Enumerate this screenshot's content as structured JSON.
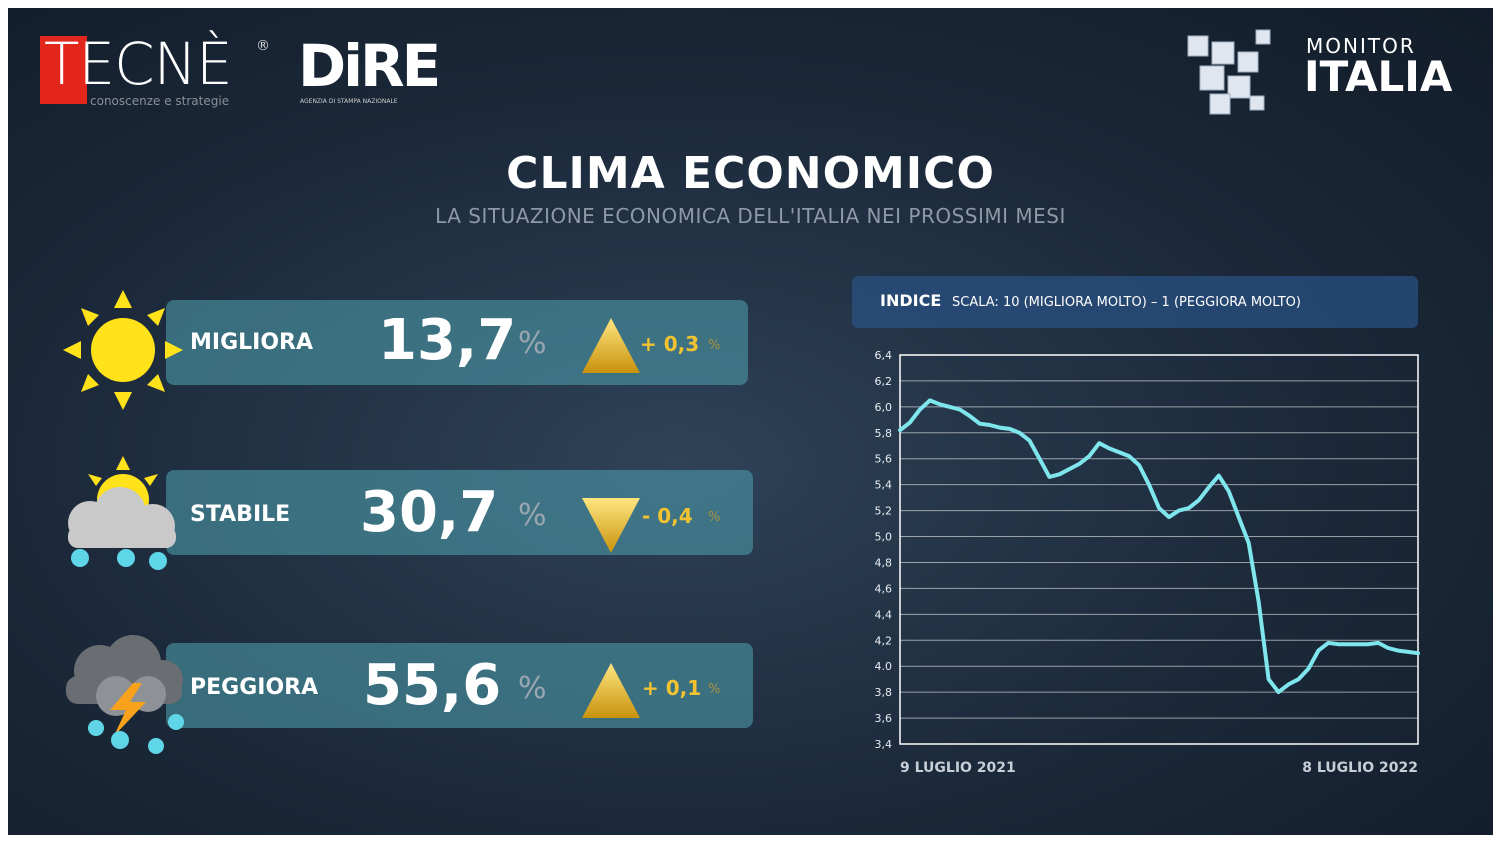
{
  "header": {
    "logo_left": "TECNÈ",
    "logo_left_mark": "®",
    "logo_left_tagline": "conoscenze e strategie",
    "logo_center": "DiRE",
    "logo_center_tagline": "AGENZIA DI STAMPA NAZIONALE",
    "logo_right_top": "MONITOR",
    "logo_right_bottom": "ITALIA"
  },
  "title": "CLIMA ECONOMICO",
  "subtitle": "LA SITUAZIONE ECONOMICA DELL'ITALIA NEI PROSSIMI MESI",
  "panels": [
    {
      "label": "MIGLIORA",
      "value": "13,7",
      "unit": "%",
      "change": "+ 0,3",
      "change_unit": "%"
    },
    {
      "label": "STABILE",
      "value": "30,7",
      "unit": "%",
      "change": "- 0,4",
      "change_unit": "%"
    },
    {
      "label": "PEGGIORA",
      "value": "55,6",
      "unit": "%",
      "change": "+ 0,1",
      "change_unit": "%"
    }
  ],
  "chart_data": {
    "type": "line",
    "title": "INDICE",
    "subtitle": "SCALA: 10 (MIGLIORA MOLTO) – 1 (PEGGIORA MOLTO)",
    "color": "#7ee6ec",
    "grid": true,
    "categories": [
      "9 LUGLIO 2021",
      null,
      null,
      null,
      null,
      null,
      null,
      null,
      null,
      null,
      null,
      null,
      null,
      null,
      null,
      null,
      null,
      null,
      null,
      null,
      null,
      null,
      null,
      null,
      null,
      null,
      null,
      null,
      null,
      null,
      null,
      null,
      null,
      null,
      null,
      null,
      null,
      null,
      null,
      null,
      null,
      null,
      null,
      null,
      null,
      null,
      null,
      null,
      null,
      null,
      null,
      null,
      "8 LUGLIO 2022"
    ],
    "values": [
      5.82,
      5.88,
      5.98,
      6.05,
      6.02,
      6.0,
      5.98,
      5.93,
      5.87,
      5.86,
      5.84,
      5.83,
      5.8,
      5.74,
      5.6,
      5.46,
      5.48,
      5.52,
      5.56,
      5.62,
      5.72,
      5.68,
      5.65,
      5.62,
      5.55,
      5.4,
      5.22,
      5.15,
      5.2,
      5.22,
      5.28,
      5.38,
      5.47,
      5.35,
      5.15,
      4.95,
      4.5,
      3.9,
      3.8,
      3.86,
      3.9,
      3.98,
      4.12,
      4.18,
      4.17,
      4.17,
      4.17,
      4.17,
      4.18,
      4.14,
      4.12,
      4.11,
      4.1
    ],
    "ylim": [
      3.4,
      6.4
    ],
    "yticks": [
      {
        "value": 3.4,
        "label": "3,4"
      },
      {
        "value": 3.6,
        "label": "3,6"
      },
      {
        "value": 3.8,
        "label": "3,8"
      },
      {
        "value": 4.0,
        "label": "4.0"
      },
      {
        "value": 4.2,
        "label": "4,2"
      },
      {
        "value": 4.4,
        "label": "4,4"
      },
      {
        "value": 4.6,
        "label": "4,6"
      },
      {
        "value": 4.8,
        "label": "4,8"
      },
      {
        "value": 5.0,
        "label": "5,0"
      },
      {
        "value": 5.2,
        "label": "5,2"
      },
      {
        "value": 5.4,
        "label": "5,4"
      },
      {
        "value": 5.6,
        "label": "5,6"
      },
      {
        "value": 5.8,
        "label": "5,8"
      },
      {
        "value": 6.0,
        "label": "6,0"
      },
      {
        "value": 6.2,
        "label": "6,2"
      },
      {
        "value": 6.4,
        "label": "6,4"
      }
    ]
  }
}
